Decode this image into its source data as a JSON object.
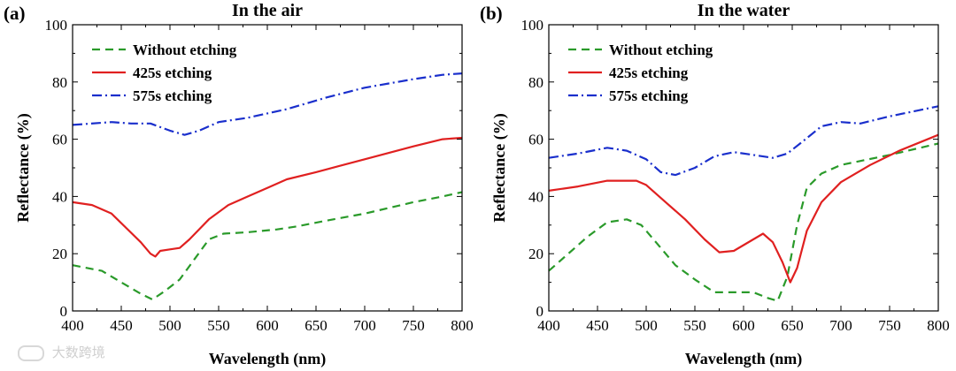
{
  "watermark": "大数跨境",
  "chart_data": [
    {
      "type": "line",
      "panel_label": "(a)",
      "title": "In the air",
      "xlabel": "Wavelength (nm)",
      "ylabel": "Reflectance (%)",
      "xlim": [
        400,
        800
      ],
      "ylim": [
        0,
        100
      ],
      "xticks": [
        400,
        450,
        500,
        550,
        600,
        650,
        700,
        750,
        800
      ],
      "yticks": [
        0,
        20,
        40,
        60,
        80,
        100
      ],
      "legend_position": "top-left",
      "series": [
        {
          "name": "Without etching",
          "color": "#2a9a2a",
          "style": "dashed",
          "points": [
            [
              400,
              16
            ],
            [
              430,
              14
            ],
            [
              450,
              10
            ],
            [
              470,
              6
            ],
            [
              482,
              4
            ],
            [
              495,
              7
            ],
            [
              510,
              11
            ],
            [
              525,
              18
            ],
            [
              540,
              25
            ],
            [
              555,
              27
            ],
            [
              580,
              27.5
            ],
            [
              610,
              28.5
            ],
            [
              630,
              29.5
            ],
            [
              660,
              31.5
            ],
            [
              700,
              34
            ],
            [
              750,
              38
            ],
            [
              780,
              40
            ],
            [
              800,
              41.5
            ]
          ]
        },
        {
          "name": "425s etching",
          "color": "#e02020",
          "style": "solid",
          "points": [
            [
              400,
              38
            ],
            [
              420,
              37
            ],
            [
              440,
              34
            ],
            [
              455,
              29
            ],
            [
              470,
              24
            ],
            [
              480,
              20
            ],
            [
              485,
              19
            ],
            [
              490,
              21
            ],
            [
              500,
              21.5
            ],
            [
              510,
              22
            ],
            [
              520,
              25
            ],
            [
              540,
              32
            ],
            [
              560,
              37
            ],
            [
              580,
              40
            ],
            [
              600,
              43
            ],
            [
              620,
              46
            ],
            [
              650,
              48.5
            ],
            [
              700,
              53
            ],
            [
              750,
              57.5
            ],
            [
              780,
              60
            ],
            [
              800,
              60.5
            ]
          ]
        },
        {
          "name": "575s etching",
          "color": "#1a2fcc",
          "style": "dashdot",
          "points": [
            [
              400,
              65
            ],
            [
              440,
              66
            ],
            [
              460,
              65.5
            ],
            [
              480,
              65.5
            ],
            [
              500,
              63
            ],
            [
              515,
              61.5
            ],
            [
              530,
              63
            ],
            [
              550,
              66
            ],
            [
              580,
              67.5
            ],
            [
              600,
              69
            ],
            [
              620,
              70.5
            ],
            [
              640,
              72.5
            ],
            [
              660,
              74.5
            ],
            [
              700,
              78
            ],
            [
              750,
              81
            ],
            [
              780,
              82.5
            ],
            [
              800,
              83
            ]
          ]
        }
      ]
    },
    {
      "type": "line",
      "panel_label": "(b)",
      "title": "In the water",
      "xlabel": "Wavelength (nm)",
      "ylabel": "Reflectance (%)",
      "xlim": [
        400,
        800
      ],
      "ylim": [
        0,
        100
      ],
      "xticks": [
        400,
        450,
        500,
        550,
        600,
        650,
        700,
        750,
        800
      ],
      "yticks": [
        0,
        20,
        40,
        60,
        80,
        100
      ],
      "legend_position": "top-left",
      "series": [
        {
          "name": "Without etching",
          "color": "#2a9a2a",
          "style": "dashed",
          "points": [
            [
              400,
              14
            ],
            [
              420,
              20
            ],
            [
              440,
              26
            ],
            [
              460,
              31
            ],
            [
              480,
              32
            ],
            [
              495,
              30
            ],
            [
              510,
              24
            ],
            [
              530,
              16
            ],
            [
              550,
              11
            ],
            [
              570,
              6.5
            ],
            [
              590,
              6.5
            ],
            [
              610,
              6.5
            ],
            [
              625,
              4.5
            ],
            [
              635,
              3.5
            ],
            [
              645,
              12
            ],
            [
              655,
              30
            ],
            [
              665,
              43
            ],
            [
              680,
              48
            ],
            [
              700,
              51
            ],
            [
              750,
              54.5
            ],
            [
              800,
              58.5
            ]
          ]
        },
        {
          "name": "425s etching",
          "color": "#e02020",
          "style": "solid",
          "points": [
            [
              400,
              42
            ],
            [
              430,
              43.5
            ],
            [
              460,
              45.5
            ],
            [
              490,
              45.5
            ],
            [
              500,
              44
            ],
            [
              520,
              38
            ],
            [
              540,
              32
            ],
            [
              560,
              25
            ],
            [
              575,
              20.5
            ],
            [
              590,
              21
            ],
            [
              610,
              25
            ],
            [
              620,
              27
            ],
            [
              630,
              24
            ],
            [
              640,
              17
            ],
            [
              648,
              10
            ],
            [
              655,
              15
            ],
            [
              665,
              28
            ],
            [
              680,
              38
            ],
            [
              700,
              45
            ],
            [
              730,
              51
            ],
            [
              760,
              56
            ],
            [
              800,
              61.5
            ]
          ]
        },
        {
          "name": "575s etching",
          "color": "#1a2fcc",
          "style": "dashdot",
          "points": [
            [
              400,
              53.5
            ],
            [
              430,
              55
            ],
            [
              460,
              57
            ],
            [
              480,
              56
            ],
            [
              500,
              53
            ],
            [
              515,
              48.5
            ],
            [
              530,
              47.5
            ],
            [
              550,
              50
            ],
            [
              570,
              54
            ],
            [
              590,
              55.5
            ],
            [
              610,
              54.5
            ],
            [
              630,
              53.5
            ],
            [
              645,
              55
            ],
            [
              660,
              59
            ],
            [
              680,
              64.5
            ],
            [
              700,
              66
            ],
            [
              720,
              65.5
            ],
            [
              750,
              68
            ],
            [
              800,
              71.5
            ]
          ]
        }
      ]
    }
  ]
}
